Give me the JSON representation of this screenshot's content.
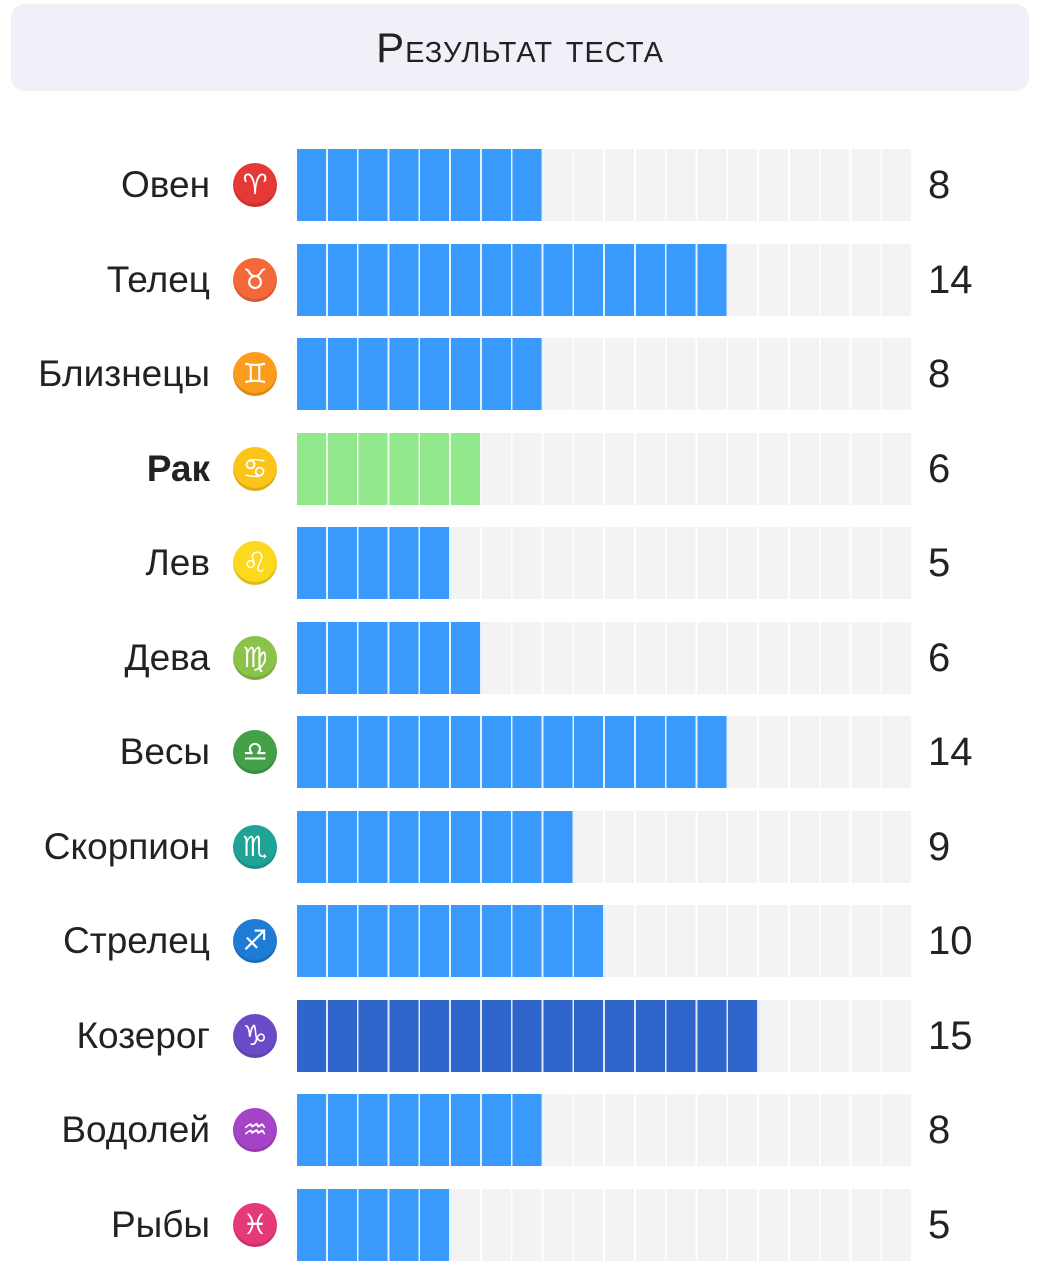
{
  "header": {
    "title": "Результат теста"
  },
  "colors": {
    "default": "#3a99fd",
    "highlight": "#91e98c",
    "max": "#3066cb",
    "track": "#f3f3f3"
  },
  "chart_data": {
    "type": "bar",
    "orientation": "horizontal",
    "title": "Результат теста",
    "scale_max": 20,
    "categories": [
      "Овен",
      "Телец",
      "Близнецы",
      "Рак",
      "Лев",
      "Дева",
      "Весы",
      "Скорпион",
      "Стрелец",
      "Козерог",
      "Водолей",
      "Рыбы"
    ],
    "values": [
      8,
      14,
      8,
      6,
      5,
      6,
      14,
      9,
      10,
      15,
      8,
      5
    ],
    "highlighted": "Рак",
    "maximum": "Козерог",
    "icons": [
      {
        "name": "aries-icon",
        "glyph": "♈",
        "color": "#e53935"
      },
      {
        "name": "taurus-icon",
        "glyph": "♉",
        "color": "#f4683a"
      },
      {
        "name": "gemini-icon",
        "glyph": "♊",
        "color": "#fb9c1c"
      },
      {
        "name": "cancer-icon",
        "glyph": "♋",
        "color": "#fcc419"
      },
      {
        "name": "leo-icon",
        "glyph": "♌",
        "color": "#fcd81e"
      },
      {
        "name": "virgo-icon",
        "glyph": "♍",
        "color": "#8bc34a"
      },
      {
        "name": "libra-icon",
        "glyph": "♎",
        "color": "#43a047"
      },
      {
        "name": "scorpio-icon",
        "glyph": "♏",
        "color": "#1fa396"
      },
      {
        "name": "sagittarius-icon",
        "glyph": "♐",
        "color": "#1e7bd6"
      },
      {
        "name": "capricorn-icon",
        "glyph": "♑",
        "color": "#6a4cc9"
      },
      {
        "name": "aquarius-icon",
        "glyph": "♒",
        "color": "#a544c7"
      },
      {
        "name": "pisces-icon",
        "glyph": "♓",
        "color": "#e5397a"
      }
    ]
  }
}
